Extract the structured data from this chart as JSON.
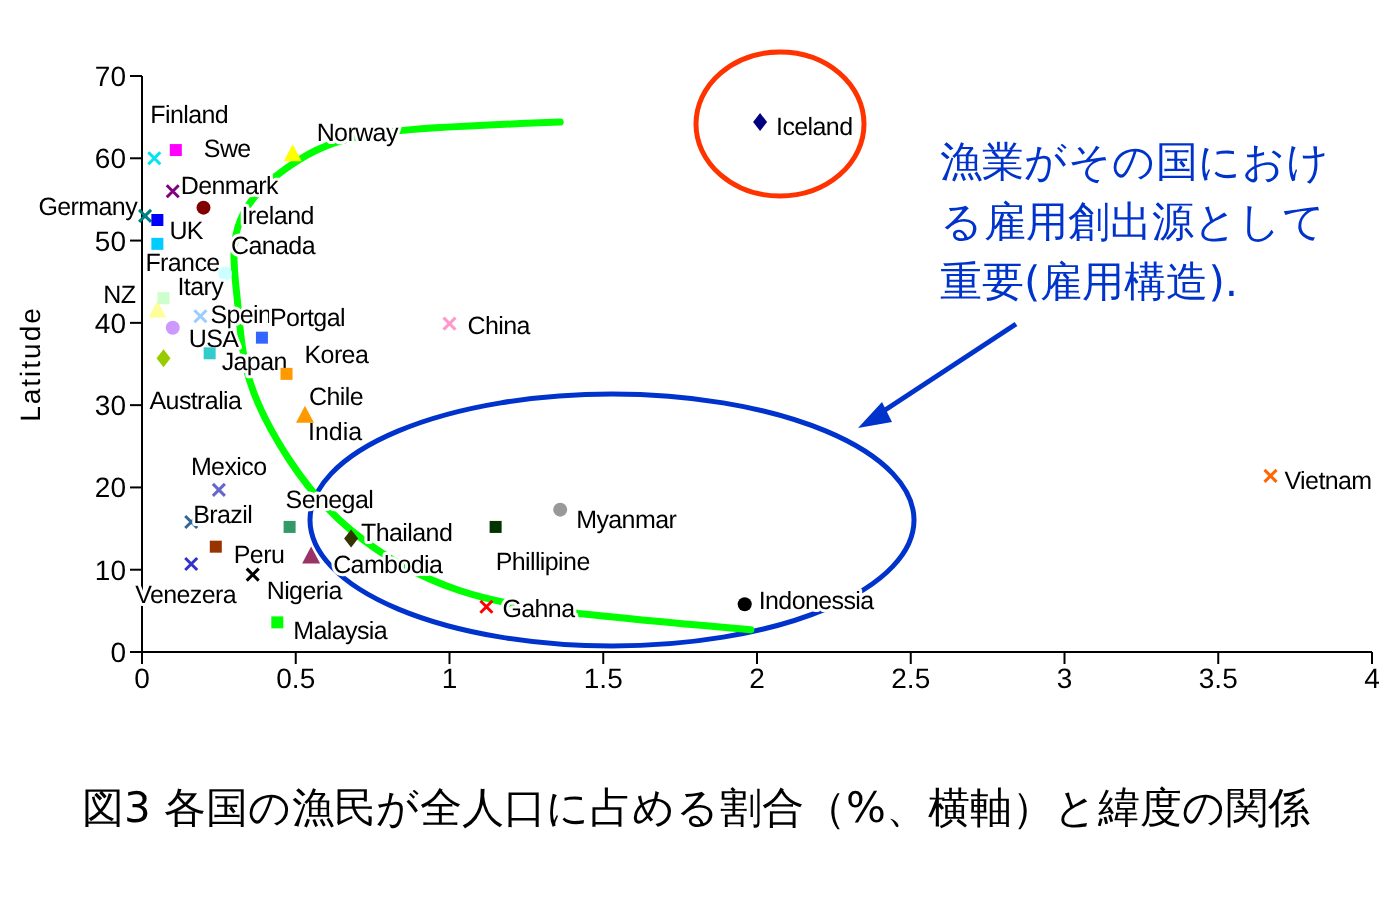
{
  "chart_data": {
    "type": "scatter",
    "title": "図3  各国の漁民が全人口に占める割合（%、横軸）と緯度の関係",
    "ylabel": "Latitude",
    "xlim": [
      0,
      4
    ],
    "xticks": [
      0,
      0.5,
      1,
      1.5,
      2,
      2.5,
      3,
      3.5,
      4
    ],
    "ylim": [
      0,
      70
    ],
    "yticks": [
      0,
      10,
      20,
      30,
      40,
      50,
      60,
      70
    ],
    "annotations": [
      "India",
      "漁業がその国における雇用創出源として重要(雇用構造)."
    ],
    "series": [
      {
        "name": "Finland",
        "color": "#00e5ee",
        "marker": "cross",
        "x": [
          0.04
        ],
        "values": [
          60
        ]
      },
      {
        "name": "Swe",
        "color": "#ff00ff",
        "marker": "square",
        "x": [
          0.11
        ],
        "values": [
          61
        ]
      },
      {
        "name": "Denmark",
        "color": "#800080",
        "marker": "cross",
        "x": [
          0.1
        ],
        "values": [
          56
        ]
      },
      {
        "name": "Ireland",
        "color": "#800000",
        "marker": "circle",
        "x": [
          0.2
        ],
        "values": [
          54
        ]
      },
      {
        "name": "Germany",
        "color": "#008080",
        "marker": "cross",
        "x": [
          0.01
        ],
        "values": [
          53
        ]
      },
      {
        "name": "UK",
        "color": "#0000ff",
        "marker": "square",
        "x": [
          0.05
        ],
        "values": [
          52.5
        ]
      },
      {
        "name": "France",
        "color": "#00ccff",
        "marker": "square",
        "x": [
          0.05
        ],
        "values": [
          49.6
        ]
      },
      {
        "name": "Canada",
        "color": "#ccffff",
        "marker": "circle",
        "x": [
          0.27
        ],
        "values": [
          46
        ]
      },
      {
        "name": "Norway",
        "color": "#ffff00",
        "marker": "triangle",
        "x": [
          0.49
        ],
        "values": [
          60.5
        ]
      },
      {
        "name": "NZ",
        "color": "#ffff99",
        "marker": "triangle",
        "x": [
          0.05
        ],
        "values": [
          41.5
        ]
      },
      {
        "name": "Itary",
        "color": "#ccffcc",
        "marker": "square",
        "x": [
          0.07
        ],
        "values": [
          43
        ]
      },
      {
        "name": "USA",
        "color": "#cc99ff",
        "marker": "circle",
        "x": [
          0.1
        ],
        "values": [
          39.4
        ]
      },
      {
        "name": "Spein",
        "color": "#99ccff",
        "marker": "cross",
        "x": [
          0.19
        ],
        "values": [
          40.8
        ]
      },
      {
        "name": "Japan",
        "color": "#33cccc",
        "marker": "square",
        "x": [
          0.22
        ],
        "values": [
          36.3
        ]
      },
      {
        "name": "Portgal",
        "color": "#3366ff",
        "marker": "square",
        "x": [
          0.39
        ],
        "values": [
          38.2
        ]
      },
      {
        "name": "Korea",
        "color": "#ff9900",
        "marker": "square",
        "x": [
          0.47
        ],
        "values": [
          33.8
        ]
      },
      {
        "name": "Australia",
        "color": "#99cc00",
        "marker": "diamond",
        "x": [
          0.07
        ],
        "values": [
          35.7
        ]
      },
      {
        "name": "Chile",
        "color": "#ff9900",
        "marker": "triangle",
        "x": [
          0.53
        ],
        "values": [
          28.7
        ]
      },
      {
        "name": "Mexico",
        "color": "#6666cc",
        "marker": "cross",
        "x": [
          0.25
        ],
        "values": [
          19.7
        ]
      },
      {
        "name": "Brazil",
        "color": "#336699",
        "marker": "cross",
        "x": [
          0.16
        ],
        "values": [
          15.8
        ]
      },
      {
        "name": "Venezera",
        "color": "#3333cc",
        "marker": "cross",
        "x": [
          0.16
        ],
        "values": [
          10.7
        ]
      },
      {
        "name": "Peru",
        "color": "#993300",
        "marker": "square",
        "x": [
          0.24
        ],
        "values": [
          12.8
        ]
      },
      {
        "name": "Nigeria",
        "color": "#000000",
        "marker": "cross",
        "x": [
          0.36
        ],
        "values": [
          9.4
        ]
      },
      {
        "name": "Malaysia",
        "color": "#00ff00",
        "marker": "square",
        "x": [
          0.44
        ],
        "values": [
          3.6
        ]
      },
      {
        "name": "Senegal",
        "color": "#339966",
        "marker": "square",
        "x": [
          0.48
        ],
        "values": [
          15.2
        ]
      },
      {
        "name": "Cambodia",
        "color": "#993366",
        "marker": "triangle",
        "x": [
          0.55
        ],
        "values": [
          11.6
        ]
      },
      {
        "name": "Thailand",
        "color": "#333300",
        "marker": "diamond",
        "x": [
          0.68
        ],
        "values": [
          13.8
        ]
      },
      {
        "name": "Phillipine",
        "color": "#003300",
        "marker": "square",
        "x": [
          1.15
        ],
        "values": [
          15.2
        ]
      },
      {
        "name": "Myanmar",
        "color": "#999999",
        "marker": "circle",
        "x": [
          1.36
        ],
        "values": [
          17.3
        ]
      },
      {
        "name": "Gahna",
        "color": "#ff0000",
        "marker": "cross",
        "x": [
          1.12
        ],
        "values": [
          5.5
        ]
      },
      {
        "name": "Indonessia",
        "color": "#000000",
        "marker": "circle",
        "x": [
          1.96
        ],
        "values": [
          5.8
        ]
      },
      {
        "name": "Vietnam",
        "color": "#ff6600",
        "marker": "cross",
        "x": [
          3.67
        ],
        "values": [
          21.4
        ]
      },
      {
        "name": "China",
        "color": "#ff99cc",
        "marker": "cross",
        "x": [
          1.0
        ],
        "values": [
          39.9
        ]
      },
      {
        "name": "Iceland",
        "color": "#000080",
        "marker": "diamond",
        "x": [
          2.01
        ],
        "values": [
          64.4
        ]
      },
      {
        "type": "line",
        "color": "#00ff00",
        "marker": "none",
        "x": [
          1.36,
          0.8,
          0.51,
          0.32,
          0.31,
          0.35,
          0.48,
          0.68,
          1.03,
          1.49,
          1.98
        ],
        "values": [
          64.4,
          63.2,
          59.8,
          52.5,
          42.8,
          33,
          23.3,
          14.8,
          7.5,
          4.4,
          2.7
        ]
      }
    ]
  }
}
